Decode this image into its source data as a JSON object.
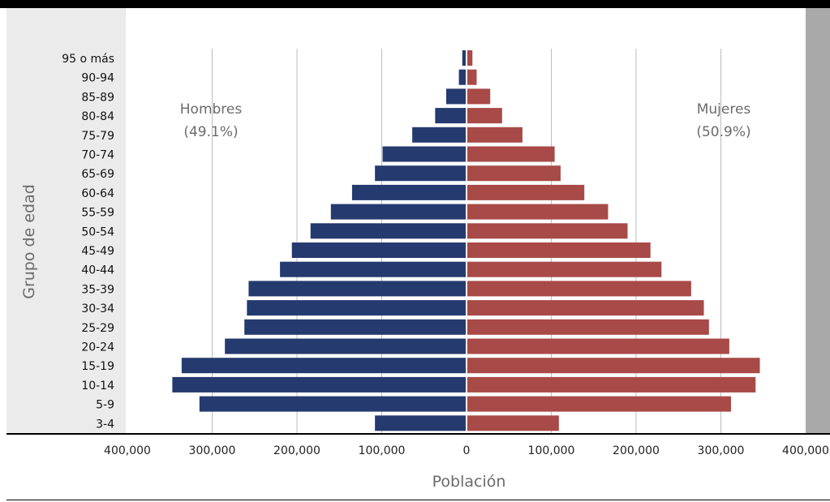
{
  "chart_data": {
    "type": "bar",
    "orientation": "population-pyramid",
    "xlabel": "Población",
    "ylabel": "Grupo de edad",
    "xlim": [
      -400000,
      400000
    ],
    "grid": true,
    "x_ticks": [
      "400,000",
      "300,000",
      "200,000",
      "100,000",
      "0",
      "100,000",
      "200,000",
      "300,000",
      "400,000"
    ],
    "categories": [
      "95 o más",
      "90-94",
      "85-89",
      "80-84",
      "75-79",
      "70-74",
      "65-69",
      "60-64",
      "55-59",
      "50-54",
      "45-49",
      "40-44",
      "35-39",
      "30-34",
      "25-29",
      "20-24",
      "15-19",
      "10-14",
      "5-9",
      "3-4"
    ],
    "series": [
      {
        "name": "Hombres",
        "share_label": "(49.1%)",
        "color": "#253a6e",
        "values": [
          5000,
          9000,
          24000,
          37000,
          64000,
          99000,
          108000,
          135000,
          160000,
          184000,
          206000,
          220000,
          257000,
          259000,
          262000,
          285000,
          336000,
          347000,
          315000,
          108000
        ]
      },
      {
        "name": "Mujeres",
        "share_label": "(50.9%)",
        "color": "#a84a47",
        "values": [
          6000,
          11000,
          27000,
          41000,
          65000,
          103000,
          110000,
          138000,
          166000,
          189000,
          216000,
          229000,
          264000,
          279000,
          285000,
          309000,
          345000,
          340000,
          311000,
          108000
        ]
      }
    ]
  }
}
